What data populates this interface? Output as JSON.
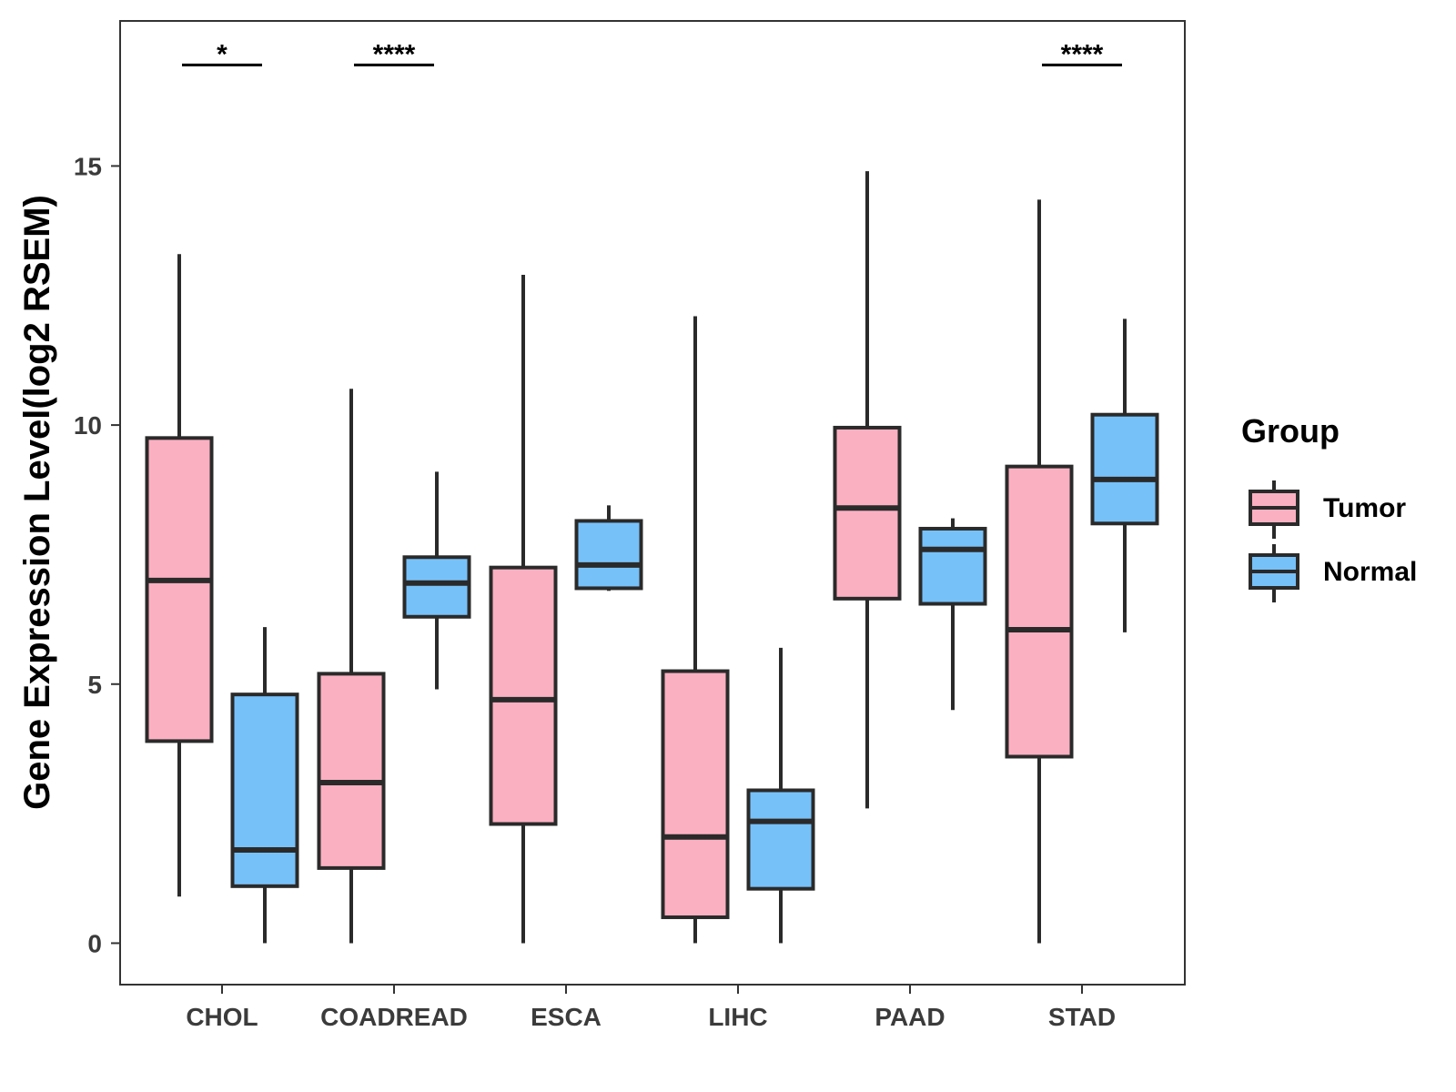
{
  "chart_data": {
    "type": "boxplot",
    "title": "",
    "xlabel": "",
    "ylabel": "Gene Expression Level(log2 RSEM)",
    "ylim": [
      -0.8,
      17.8
    ],
    "yticks": [
      0,
      5,
      10,
      15
    ],
    "categories": [
      "CHOL",
      "COADREAD",
      "ESCA",
      "LIHC",
      "PAAD",
      "STAD"
    ],
    "legend": {
      "title": "Group",
      "position": "right",
      "items": [
        {
          "name": "Tumor",
          "color": "#FBB0C1"
        },
        {
          "name": "Normal",
          "color": "#77C1F9"
        }
      ]
    },
    "series": [
      {
        "name": "Tumor",
        "color": "#FBB0C1",
        "boxes": [
          {
            "category": "CHOL",
            "min": 0.9,
            "q1": 3.9,
            "median": 7.0,
            "q3": 9.75,
            "max": 13.3
          },
          {
            "category": "COADREAD",
            "min": 0.0,
            "q1": 1.45,
            "median": 3.1,
            "q3": 5.2,
            "max": 10.7
          },
          {
            "category": "ESCA",
            "min": 0.0,
            "q1": 2.3,
            "median": 4.7,
            "q3": 7.25,
            "max": 12.9
          },
          {
            "category": "LIHC",
            "min": 0.0,
            "q1": 0.5,
            "median": 2.05,
            "q3": 5.25,
            "max": 12.1
          },
          {
            "category": "PAAD",
            "min": 2.6,
            "q1": 6.65,
            "median": 8.4,
            "q3": 9.95,
            "max": 14.9
          },
          {
            "category": "STAD",
            "min": 0.0,
            "q1": 3.6,
            "median": 6.05,
            "q3": 9.2,
            "max": 14.35
          }
        ]
      },
      {
        "name": "Normal",
        "color": "#77C1F9",
        "boxes": [
          {
            "category": "CHOL",
            "min": 0.0,
            "q1": 1.1,
            "median": 1.8,
            "q3": 4.8,
            "max": 6.1
          },
          {
            "category": "COADREAD",
            "min": 4.9,
            "q1": 6.3,
            "median": 6.95,
            "q3": 7.45,
            "max": 9.1
          },
          {
            "category": "ESCA",
            "min": 6.8,
            "q1": 6.85,
            "median": 7.3,
            "q3": 8.15,
            "max": 8.45
          },
          {
            "category": "LIHC",
            "min": 0.0,
            "q1": 1.05,
            "median": 2.35,
            "q3": 2.95,
            "max": 5.7
          },
          {
            "category": "PAAD",
            "min": 4.5,
            "q1": 6.55,
            "median": 7.6,
            "q3": 8.0,
            "max": 8.2
          },
          {
            "category": "STAD",
            "min": 6.0,
            "q1": 8.1,
            "median": 8.95,
            "q3": 10.2,
            "max": 12.05
          }
        ]
      }
    ],
    "annotations": [
      {
        "category": "CHOL",
        "label": "*",
        "y": 16.95
      },
      {
        "category": "COADREAD",
        "label": "****",
        "y": 16.95
      },
      {
        "category": "STAD",
        "label": "****",
        "y": 16.95
      }
    ]
  }
}
